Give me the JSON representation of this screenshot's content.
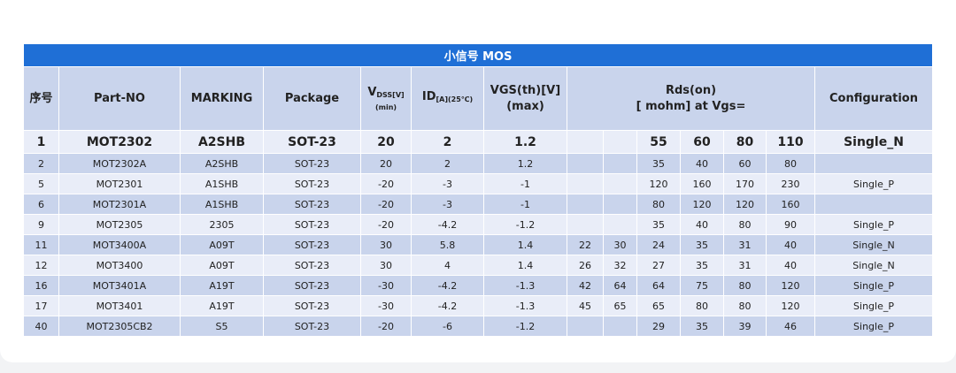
{
  "table": {
    "title": "小信号 MOS",
    "header": {
      "no": "序号",
      "part": "Part-NO",
      "marking": "MARKING",
      "package": "Package",
      "vdss": {
        "main": "V",
        "sub": "DSS[V]",
        "note": "(min)"
      },
      "id": {
        "main": "ID",
        "sub": "[A](25℃)"
      },
      "vgs": {
        "line1": "VGS(th)[V]",
        "line2": "(max)"
      },
      "rds": {
        "line1": "Rds(on)",
        "line2": "[ mohm] at Vgs="
      },
      "config": "Configuration"
    },
    "rows": [
      [
        1,
        "MOT2302",
        "A2SHB",
        "SOT-23",
        20,
        2,
        1.2,
        null,
        null,
        55,
        60,
        80,
        110,
        "Single_N"
      ],
      [
        2,
        "MOT2302A",
        "A2SHB",
        "SOT-23",
        20,
        2,
        1.2,
        null,
        null,
        35,
        40,
        60,
        80,
        null
      ],
      [
        5,
        "MOT2301",
        "A1SHB",
        "SOT-23",
        -20,
        -3,
        -1,
        null,
        null,
        120,
        160,
        170,
        230,
        "Single_P"
      ],
      [
        6,
        "MOT2301A",
        "A1SHB",
        "SOT-23",
        -20,
        -3,
        -1,
        null,
        null,
        80,
        120,
        120,
        160,
        null
      ],
      [
        9,
        "MOT2305",
        "2305",
        "SOT-23",
        -20,
        -4.2,
        -1.2,
        null,
        null,
        35,
        40,
        80,
        90,
        "Single_P"
      ],
      [
        11,
        "MOT3400A",
        "A09T",
        "SOT-23",
        30,
        5.8,
        1.4,
        22,
        30,
        24,
        35,
        31,
        40,
        "Single_N"
      ],
      [
        12,
        "MOT3400",
        "A09T",
        "SOT-23",
        30,
        4,
        1.4,
        26,
        32,
        27,
        35,
        31,
        40,
        "Single_N"
      ],
      [
        16,
        "MOT3401A",
        "A19T",
        "SOT-23",
        -30,
        -4.2,
        -1.3,
        42,
        64,
        64,
        75,
        80,
        120,
        "Single_P"
      ],
      [
        17,
        "MOT3401",
        "A19T",
        "SOT-23",
        -30,
        -4.2,
        -1.3,
        45,
        65,
        65,
        80,
        80,
        120,
        "Single_P"
      ],
      [
        40,
        "MOT2305CB2",
        "S5",
        "SOT-23",
        -20,
        -6,
        -1.2,
        null,
        null,
        29,
        35,
        39,
        46,
        "Single_P"
      ]
    ]
  }
}
